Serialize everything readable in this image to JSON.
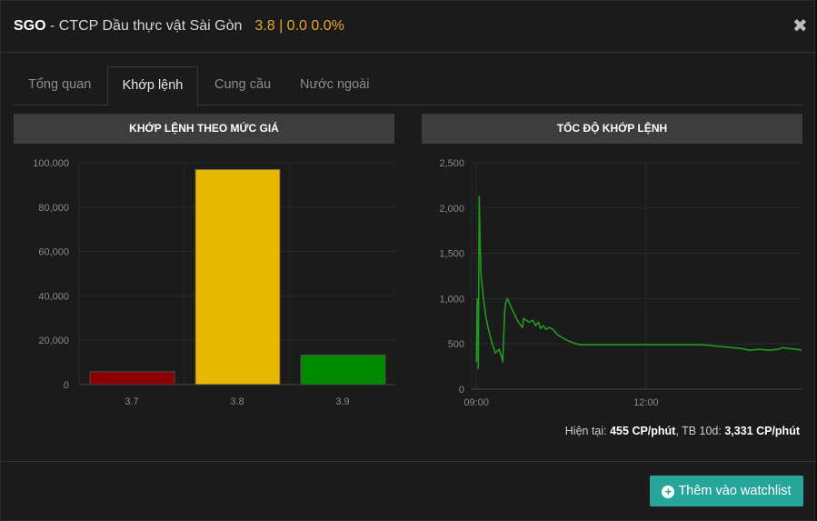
{
  "header": {
    "ticker": "SGO",
    "separator": " - ",
    "company": "CTCP Dầu thực vật Sài Gòn",
    "price_info": "3.8 | 0.0 0.0%",
    "close_icon": "close-icon"
  },
  "tabs": [
    {
      "label": "Tổng quan",
      "active": false
    },
    {
      "label": "Khớp lệnh",
      "active": true
    },
    {
      "label": "Cung cầu",
      "active": false
    },
    {
      "label": "Nước ngoài",
      "active": false
    }
  ],
  "left_panel": {
    "title": "KHỚP LỆNH THEO MỨC GIÁ"
  },
  "right_panel": {
    "title": "TỐC ĐỘ KHỚP LỆNH"
  },
  "chart_data": [
    {
      "type": "bar",
      "title": "KHỚP LỆNH THEO MỨC GIÁ",
      "categories": [
        "3.7",
        "3.8",
        "3.9"
      ],
      "values": [
        5800,
        97000,
        13300
      ],
      "colors": [
        "#8b0000",
        "#e6b800",
        "#008a00"
      ],
      "ylim": [
        0,
        100000
      ],
      "yticks": [
        0,
        20000,
        40000,
        60000,
        80000,
        100000
      ],
      "ytick_labels": [
        "0",
        "20,000",
        "40,000",
        "60,000",
        "80,000",
        "100,000"
      ],
      "grid": true
    },
    {
      "type": "line",
      "title": "TỐC ĐỘ KHỚP LỆNH",
      "color": "#1f9a1f",
      "ylim": [
        0,
        2500
      ],
      "yticks": [
        0,
        500,
        1000,
        1500,
        2000,
        2500
      ],
      "ytick_labels": [
        "0",
        "500",
        "1,000",
        "1,500",
        "2,000",
        "2,500"
      ],
      "xlim": [
        "08:55",
        "14:45"
      ],
      "xticks": [
        "09:00",
        "12:00"
      ],
      "grid": true,
      "x": [
        "09:00",
        "09:01",
        "09:02",
        "09:03",
        "09:04",
        "09:05",
        "09:07",
        "09:10",
        "09:13",
        "09:16",
        "09:20",
        "09:24",
        "09:27",
        "09:28",
        "09:30",
        "09:31",
        "09:33",
        "09:38",
        "09:44",
        "09:49",
        "09:50",
        "09:53",
        "09:56",
        "10:00",
        "10:03",
        "10:06",
        "10:08",
        "10:11",
        "10:14",
        "10:17",
        "10:20",
        "10:23",
        "10:26",
        "10:31",
        "10:36",
        "10:41",
        "10:46",
        "10:51",
        "10:56",
        "11:01",
        "11:06",
        "11:11",
        "11:16",
        "11:21",
        "11:30",
        "12:00",
        "12:30",
        "13:00",
        "13:30",
        "13:40",
        "13:50",
        "14:00",
        "14:10",
        "14:20",
        "14:25",
        "14:30",
        "14:40",
        "14:45"
      ],
      "y": [
        300,
        1000,
        230,
        2130,
        1600,
        1250,
        1050,
        800,
        650,
        530,
        400,
        440,
        350,
        300,
        850,
        950,
        1000,
        880,
        750,
        680,
        780,
        760,
        740,
        760,
        700,
        740,
        670,
        700,
        660,
        680,
        670,
        640,
        600,
        570,
        540,
        520,
        500,
        490,
        490,
        490,
        490,
        490,
        490,
        490,
        490,
        490,
        490,
        490,
        460,
        450,
        430,
        440,
        430,
        440,
        460,
        450,
        440,
        430
      ]
    }
  ],
  "speed": {
    "label_current": "Hiện tại: ",
    "current": "455 CP/phút",
    "label_avg": ", TB 10d: ",
    "avg": "3,331 CP/phút"
  },
  "watchlist_button": {
    "label": "Thêm vào watchlist",
    "icon": "plus-circle-icon"
  }
}
